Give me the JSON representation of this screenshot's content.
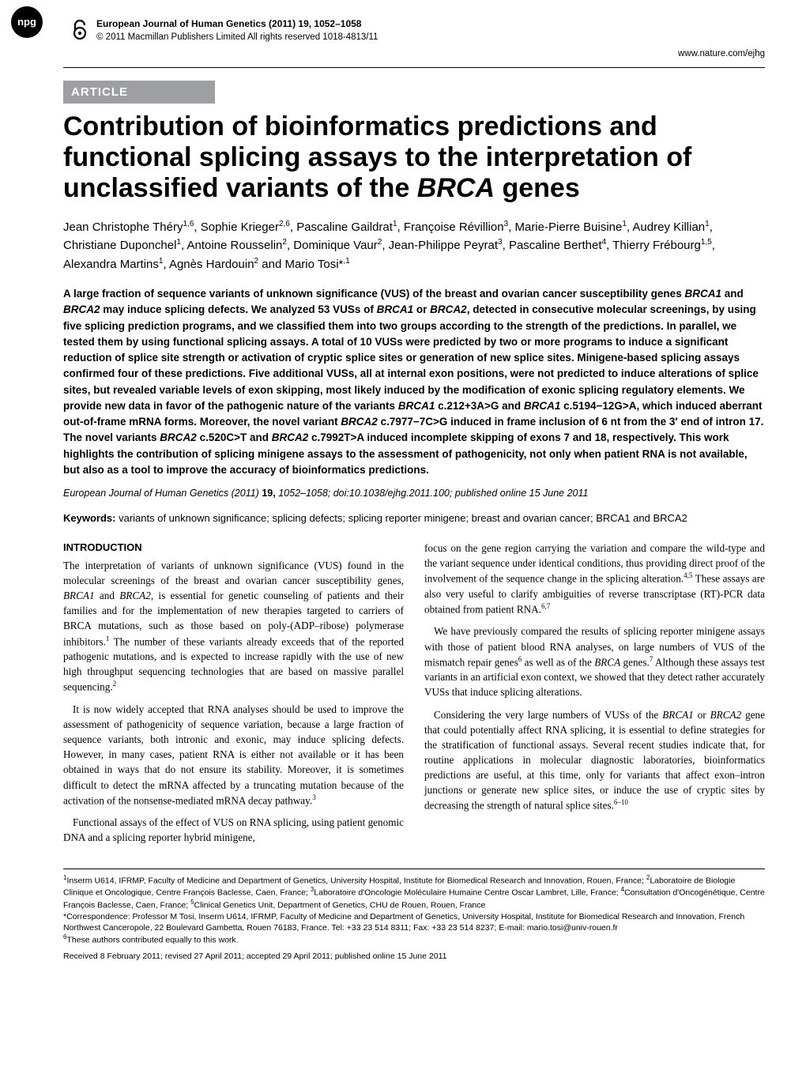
{
  "badge": {
    "text": "npg"
  },
  "masthead": {
    "journal_title": "European Journal of Human Genetics (2011) 19, 1052–1058",
    "copyright": "© 2011 Macmillan Publishers Limited  All rights reserved 1018-4813/11",
    "url": "www.nature.com/ejhg"
  },
  "article_label": "ARTICLE",
  "title_html": "Contribution of bioinformatics predictions and functional splicing assays to the interpretation of unclassified variants of the <em>BRCA</em> genes",
  "authors_html": "Jean Christophe Théry<sup>1,6</sup>, Sophie Krieger<sup>2,6</sup>, Pascaline Gaildrat<sup>1</sup>, Françoise Révillion<sup>3</sup>, Marie-Pierre Buisine<sup>1</sup>, Audrey Killian<sup>1</sup>, Christiane Duponchel<sup>1</sup>, Antoine Rousselin<sup>2</sup>, Dominique Vaur<sup>2</sup>, Jean-Philippe Peyrat<sup>3</sup>, Pascaline Berthet<sup>4</sup>, Thierry Frébourg<sup>1,5</sup>, Alexandra Martins<sup>1</sup>, Agnès Hardouin<sup>2</sup> and Mario Tosi*<sup>,1</sup>",
  "abstract_html": "A large fraction of sequence variants of unknown significance (VUS) of the breast and ovarian cancer susceptibility genes <em>BRCA1</em> and <em>BRCA2</em> may induce splicing defects. We analyzed 53 VUSs of <em>BRCA1</em> or <em>BRCA2</em>, detected in consecutive molecular screenings, by using five splicing prediction programs, and we classified them into two groups according to the strength of the predictions. In parallel, we tested them by using functional splicing assays. A total of 10 VUSs were predicted by two or more programs to induce a significant reduction of splice site strength or activation of cryptic splice sites or generation of new splice sites. Minigene-based splicing assays confirmed four of these predictions. Five additional VUSs, all at internal exon positions, were not predicted to induce alterations of splice sites, but revealed variable levels of exon skipping, most likely induced by the modification of exonic splicing regulatory elements. We provide new data in favor of the pathogenic nature of the variants <em>BRCA1</em> c.212+3A>G and <em>BRCA1</em> c.5194−12G>A, which induced aberrant out-of-frame mRNA forms. Moreover, the novel variant <em>BRCA2</em> c.7977−7C>G induced in frame inclusion of 6 nt from the 3′ end of intron 17. The novel variants <em>BRCA2</em> c.520C>T and <em>BRCA2</em> c.7992T>A induced incomplete skipping of exons 7 and 18, respectively. This work highlights the contribution of splicing minigene assays to the assessment of pathogenicity, not only when patient RNA is not available, but also as a tool to improve the accuracy of bioinformatics predictions.",
  "citation": {
    "journal": "European Journal of Human Genetics",
    "year_vol": "(2011)",
    "vol": "19,",
    "pages": "1052–1058; doi:10.1038/ejhg.2011.100; published online 15 June 2011"
  },
  "keywords": {
    "label": "Keywords:",
    "text": "variants of unknown significance; splicing defects; splicing reporter minigene; breast and ovarian cancer; BRCA1 and BRCA2"
  },
  "body": {
    "section_head": "INTRODUCTION",
    "left": {
      "p1": "The interpretation of variants of unknown significance (VUS) found in the molecular screenings of the breast and ovarian cancer susceptibility genes, <em>BRCA1</em> and <em>BRCA2</em>, is essential for genetic counseling of patients and their families and for the implementation of new therapies targeted to carriers of BRCA mutations, such as those based on poly-(ADP–ribose) polymerase inhibitors.<sup>1</sup> The number of these variants already exceeds that of the reported pathogenic mutations, and is expected to increase rapidly with the use of new high throughput sequencing technologies that are based on massive parallel sequencing.<sup>2</sup>",
      "p2": "It is now widely accepted that RNA analyses should be used to improve the assessment of pathogenicity of sequence variation, because a large fraction of sequence variants, both intronic and exonic, may induce splicing defects. However, in many cases, patient RNA is either not available or it has been obtained in ways that do not ensure its stability. Moreover, it is sometimes difficult to detect the mRNA affected by a truncating mutation because of the activation of the nonsense-mediated mRNA decay pathway.<sup>3</sup>",
      "p3": "Functional assays of the effect of VUS on RNA splicing, using patient genomic DNA and a splicing reporter hybrid minigene,"
    },
    "right": {
      "p1": "focus on the gene region carrying the variation and compare the wild-type and the variant sequence under identical conditions, thus providing direct proof of the involvement of the sequence change in the splicing alteration.<sup>4,5</sup> These assays are also very useful to clarify ambiguities of reverse transcriptase (RT)-PCR data obtained from patient RNA.<sup>6,7</sup>",
      "p2": "We have previously compared the results of splicing reporter minigene assays with those of patient blood RNA analyses, on large numbers of VUS of the mismatch repair genes<sup>6</sup> as well as of the <em>BRCA</em> genes.<sup>7</sup> Although these assays test variants in an artificial exon context, we showed that they detect rather accurately VUSs that induce splicing alterations.",
      "p3": "Considering the very large numbers of VUSs of the <em>BRCA1</em> or <em>BRCA2</em> gene that could potentially affect RNA splicing, it is essential to define strategies for the stratification of functional assays. Several recent studies indicate that, for routine applications in molecular diagnostic laboratories, bioinformatics predictions are useful, at this time, only for variants that affect exon–intron junctions or generate new splice sites, or induce the use of cryptic sites by decreasing the strength of natural splice sites.<sup>6–10</sup>"
    }
  },
  "footer": {
    "affil": "<sup>1</sup>Inserm U614, IFRMP, Faculty of Medicine and Department of Genetics, University Hospital, Institute for Biomedical Research and Innovation, Rouen, France; <sup>2</sup>Laboratoire de Biologie Clinique et Oncologique, Centre François Baclesse, Caen, France; <sup>3</sup>Laboratoire d'Oncologie Moléculaire Humaine Centre Oscar Lambret, Lille, France; <sup>4</sup>Consultation d'Oncogénétique, Centre François Baclesse, Caen, France; <sup>5</sup>Clinical Genetics Unit, Department of Genetics, CHU de Rouen, Rouen, France",
    "corresp": "*Correspondence: Professor M Tosi, Inserm U614, IFRMP, Faculty of Medicine and Department of Genetics, University Hospital, Institute for Biomedical Research and Innovation, French Northwest Canceropole, 22 Boulevard Gambetta, Rouen 76183, France. Tel: +33 23 514 8311; Fax: +33 23 514 8237; E-mail: mario.tosi@univ-rouen.fr",
    "equal": "<sup>6</sup>These authors contributed equally to this work.",
    "received": "Received 8 February 2011; revised 27 April 2011; accepted 29 April 2011; published online 15 June 2011"
  }
}
